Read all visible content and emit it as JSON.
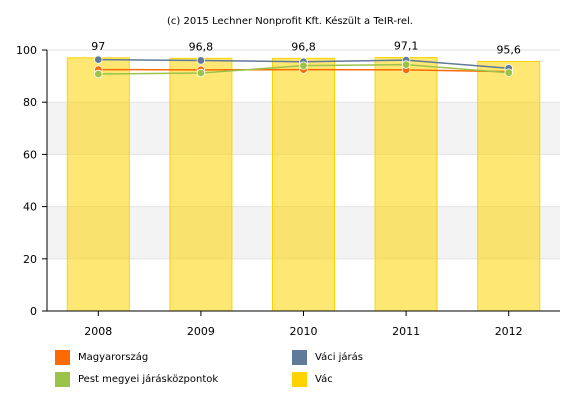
{
  "caption": "(c) 2015 Lechner Nonprofit Kft. Készült a TeIR-rel.",
  "chart_data": {
    "type": "bar",
    "categories": [
      "2008",
      "2009",
      "2010",
      "2011",
      "2012"
    ],
    "ylim": [
      0,
      100
    ],
    "y_ticks": [
      0,
      20,
      40,
      60,
      80,
      100
    ],
    "grid": "alternating horizontal bands",
    "legend_position": "bottom",
    "bar_series": {
      "name": "Vác",
      "color": "#fdd400",
      "values": [
        97,
        96.8,
        96.8,
        97.1,
        95.6
      ],
      "data_labels": [
        "97",
        "96,8",
        "96,8",
        "97,1",
        "95,6"
      ]
    },
    "line_series": [
      {
        "name": "Magyarország",
        "color": "#fd6a02",
        "values": [
          92.5,
          92.4,
          92.5,
          92.4,
          91.7
        ]
      },
      {
        "name": "Váci járás",
        "color": "#607a99",
        "values": [
          96.3,
          96.0,
          95.5,
          96.1,
          93.0
        ]
      },
      {
        "name": "Pest megyei járásközpontok",
        "color": "#9bc34a",
        "values": [
          90.8,
          91.2,
          94.0,
          94.4,
          91.3
        ]
      }
    ]
  },
  "legend": [
    {
      "label": "Magyarország",
      "color": "#fd6a02"
    },
    {
      "label": "Váci járás",
      "color": "#607a99"
    },
    {
      "label": "Pest megyei járásközpontok",
      "color": "#9bc34a"
    },
    {
      "label": "Vác",
      "color": "#fdd400"
    }
  ]
}
